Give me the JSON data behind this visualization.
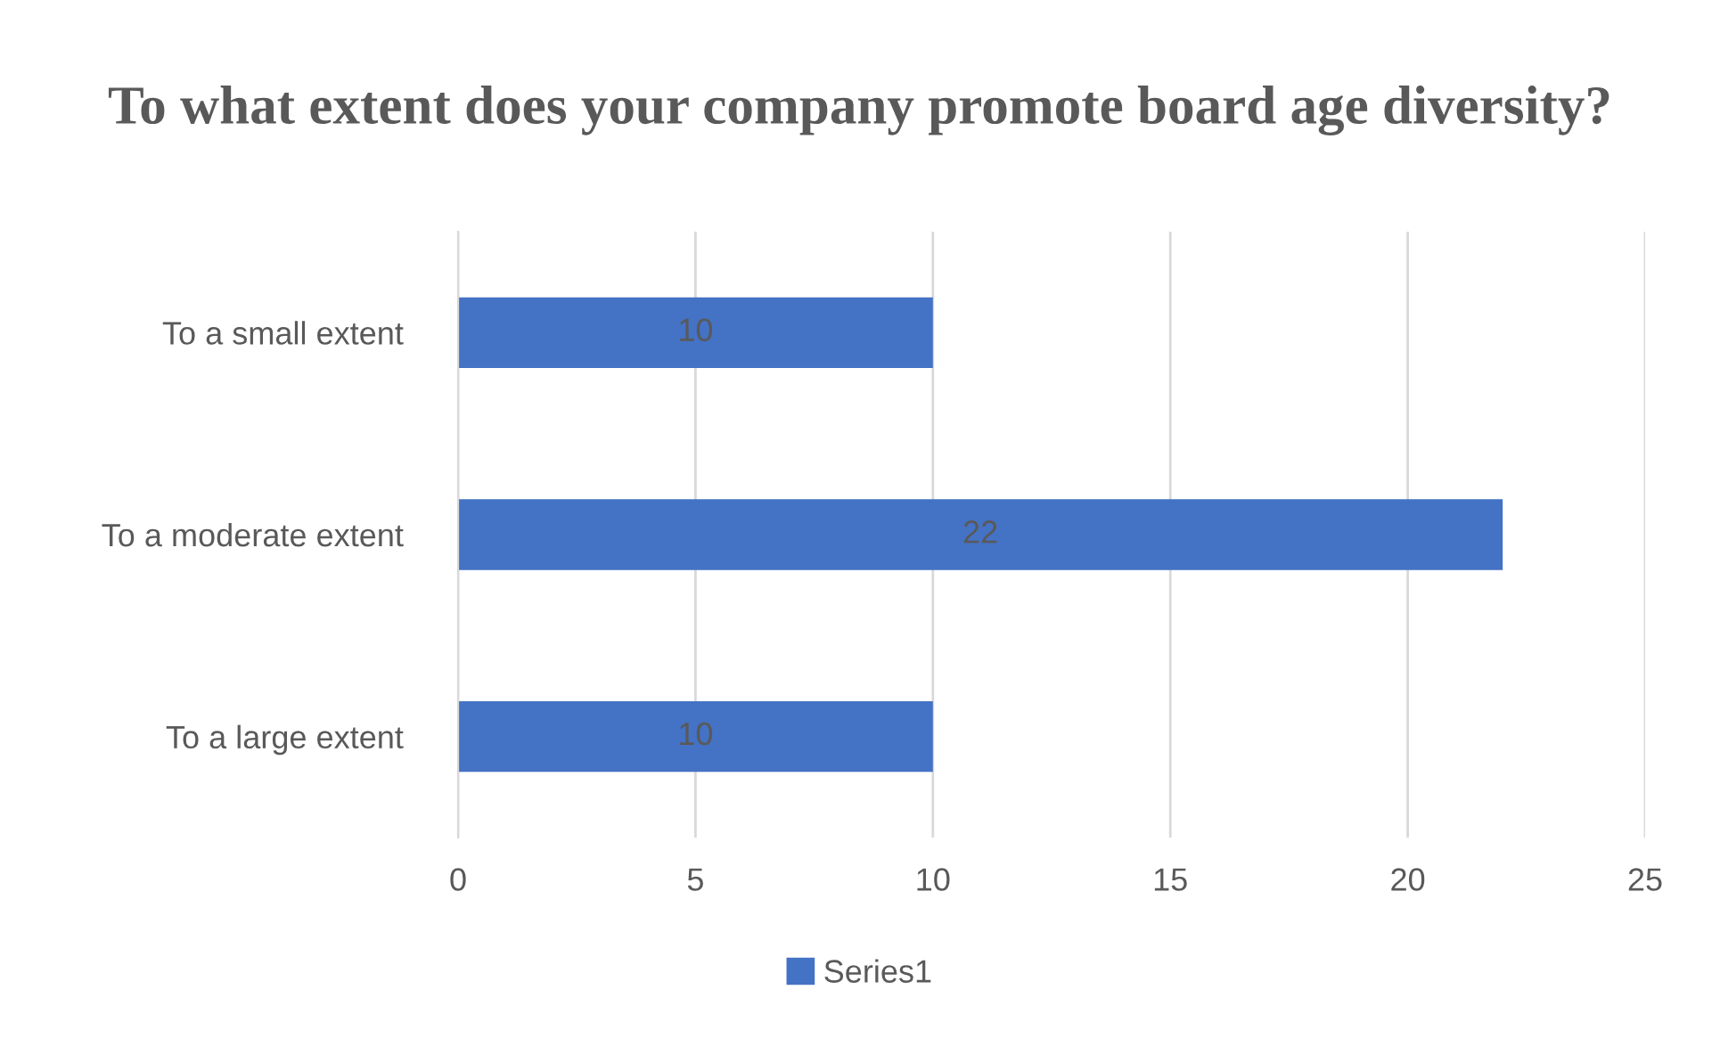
{
  "chart_data": {
    "type": "bar",
    "orientation": "horizontal",
    "title": "To what extent does your company promote board age diversity?",
    "categories": [
      "To a small extent",
      "To a moderate extent",
      "To a large extent"
    ],
    "series": [
      {
        "name": "Series1",
        "color": "#4472c4",
        "values": [
          10,
          22,
          10
        ]
      }
    ],
    "xlim": [
      0,
      25
    ],
    "xticks": [
      0,
      5,
      10,
      15,
      20,
      25
    ],
    "grid": "x",
    "legend": "bottom",
    "data_labels": true
  }
}
